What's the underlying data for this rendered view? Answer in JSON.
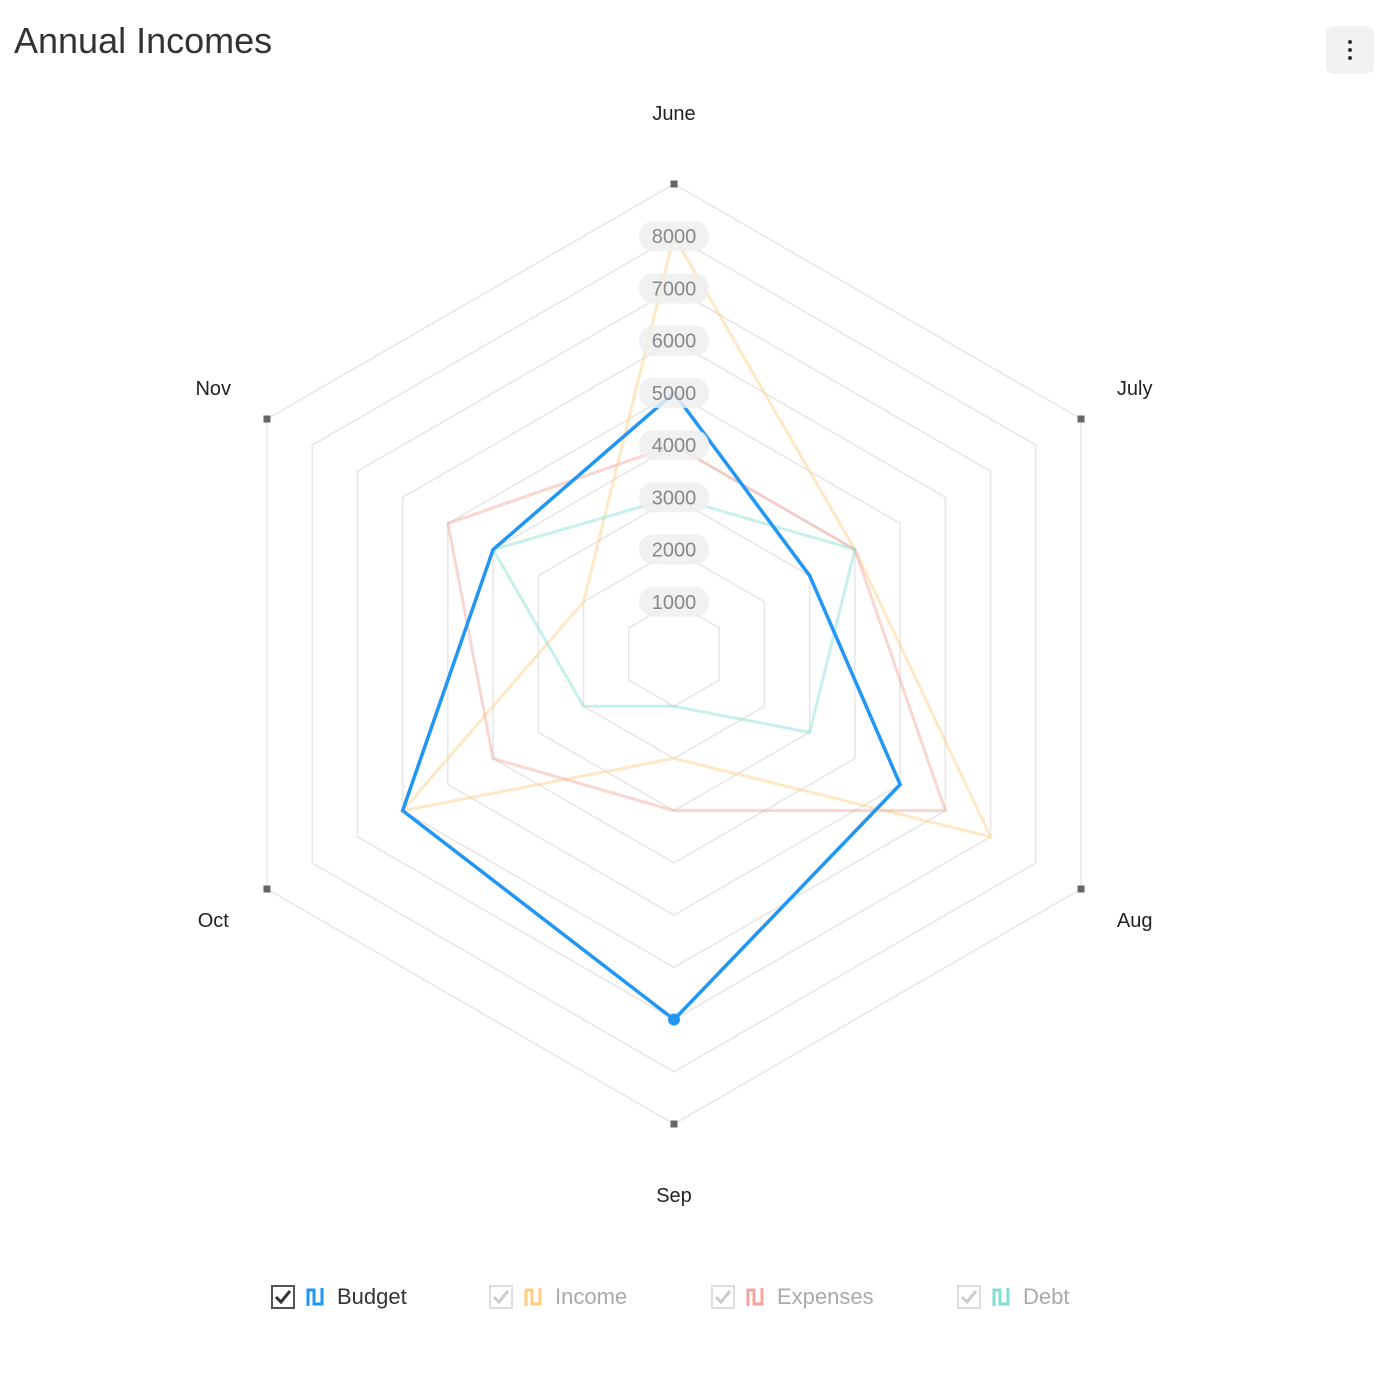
{
  "header": {
    "title": "Annual Incomes",
    "menu_icon": "vertical-dots-icon"
  },
  "chart_data": {
    "type": "radar",
    "title": "Annual Incomes",
    "categories": [
      "June",
      "July",
      "Aug",
      "Sep",
      "Oct",
      "Nov"
    ],
    "ticks": [
      1000,
      2000,
      3000,
      4000,
      5000,
      6000,
      7000,
      8000
    ],
    "rlim": [
      0,
      9000
    ],
    "grid": true,
    "legend_position": "bottom",
    "series": [
      {
        "name": "Budget",
        "values": [
          5000,
          3000,
          5000,
          7000,
          6000,
          4000
        ],
        "color": "#2196f3",
        "active": true
      },
      {
        "name": "Income",
        "values": [
          8000,
          4000,
          7000,
          2000,
          6000,
          2000
        ],
        "color": "#ffcc80",
        "active": false
      },
      {
        "name": "Expenses",
        "values": [
          4000,
          4000,
          6000,
          3000,
          4000,
          5000
        ],
        "color": "#f4a59c",
        "active": false
      },
      {
        "name": "Debt",
        "values": [
          3000,
          4000,
          3000,
          1000,
          2000,
          4000
        ],
        "color": "#80ddd0",
        "active": false
      }
    ]
  },
  "legend": {
    "items": [
      {
        "label": "Budget"
      },
      {
        "label": "Income"
      },
      {
        "label": "Expenses"
      },
      {
        "label": "Debt"
      }
    ]
  }
}
